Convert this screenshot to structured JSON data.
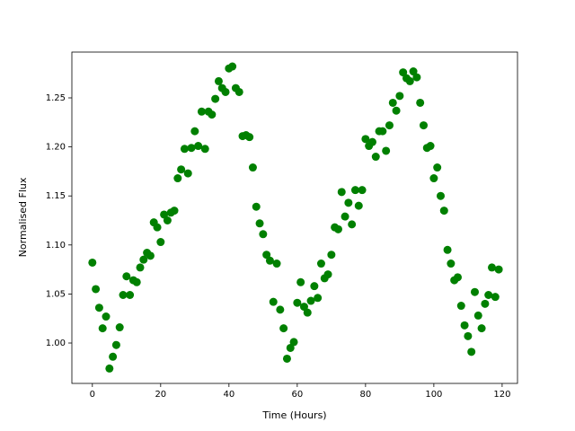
{
  "chart_data": {
    "type": "scatter",
    "x_label": "Time (Hours)",
    "y_label": "Normalised Flux",
    "color": "#008000",
    "xlim": [
      -6,
      124.5
    ],
    "ylim": [
      0.9588,
      1.2967
    ],
    "xticks": [
      0,
      20,
      40,
      60,
      80,
      100,
      120
    ],
    "yticks": [
      {
        "value": 1.0,
        "label": "1.00"
      },
      1.05,
      {
        "value": 1.1,
        "label": "1.10"
      },
      1.15,
      {
        "value": 1.2,
        "label": "1.20"
      },
      1.25
    ],
    "x": [
      0,
      1,
      2,
      3,
      4,
      5,
      6,
      7,
      8,
      9,
      10,
      11,
      12,
      13,
      14,
      15,
      16,
      17,
      18,
      19,
      20,
      21,
      22,
      23,
      24,
      25,
      26,
      27,
      28,
      29,
      30,
      31,
      32,
      33,
      34,
      35,
      36,
      37,
      38,
      39,
      40,
      41,
      42,
      43,
      44,
      45,
      46,
      47,
      48,
      49,
      50,
      51,
      52,
      53,
      54,
      55,
      56,
      57,
      58,
      59,
      60,
      61,
      62,
      63,
      64,
      65,
      66,
      67,
      68,
      69,
      70,
      71,
      72,
      73,
      74,
      75,
      76,
      77,
      78,
      79,
      80,
      81,
      82,
      83,
      84,
      85,
      86,
      87,
      88,
      89,
      90,
      91,
      92,
      93,
      94,
      95,
      96,
      97,
      98,
      99,
      100,
      101,
      102,
      103,
      104,
      105,
      106,
      107,
      108,
      109,
      110,
      111,
      112,
      113,
      114,
      115,
      116,
      117,
      118,
      119
    ],
    "values": [
      1.082,
      1.055,
      1.036,
      1.015,
      1.027,
      0.974,
      0.986,
      0.998,
      1.016,
      1.049,
      1.068,
      1.049,
      1.064,
      1.062,
      1.077,
      1.085,
      1.092,
      1.089,
      1.123,
      1.118,
      1.103,
      1.131,
      1.125,
      1.133,
      1.135,
      1.168,
      1.177,
      1.198,
      1.173,
      1.199,
      1.216,
      1.201,
      1.236,
      1.198,
      1.236,
      1.233,
      1.249,
      1.267,
      1.26,
      1.256,
      1.28,
      1.282,
      1.26,
      1.256,
      1.211,
      1.212,
      1.21,
      1.179,
      1.139,
      1.122,
      1.111,
      1.09,
      1.084,
      1.042,
      1.081,
      1.034,
      1.015,
      0.984,
      0.995,
      1.001,
      1.041,
      1.062,
      1.037,
      1.031,
      1.043,
      1.058,
      1.046,
      1.081,
      1.066,
      1.07,
      1.09,
      1.118,
      1.116,
      1.154,
      1.129,
      1.143,
      1.121,
      1.156,
      1.14,
      1.156,
      1.208,
      1.201,
      1.205,
      1.19,
      1.216,
      1.216,
      1.196,
      1.222,
      1.245,
      1.237,
      1.252,
      1.276,
      1.27,
      1.267,
      1.277,
      1.271,
      1.245,
      1.222,
      1.199,
      1.201,
      1.168,
      1.179,
      1.15,
      1.135,
      1.095,
      1.081,
      1.064,
      1.067,
      1.038,
      1.018,
      1.007,
      0.991,
      1.052,
      1.028,
      1.015,
      1.04,
      1.049,
      1.077,
      1.047,
      1.075
    ]
  }
}
